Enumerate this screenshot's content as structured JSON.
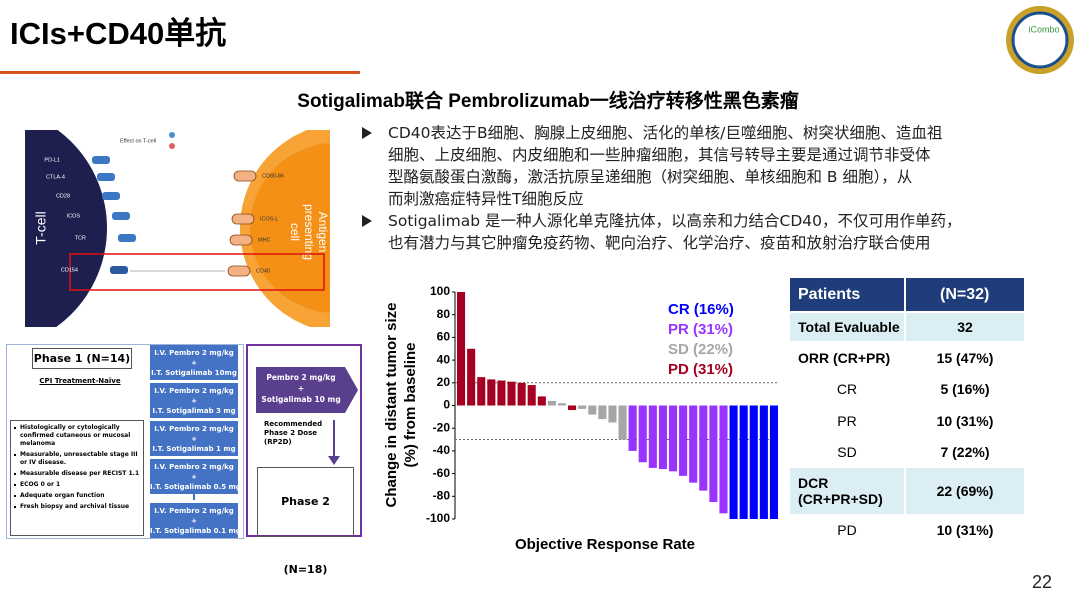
{
  "header": {
    "title": "ICIs+CD40单抗",
    "logo_text": "iCombo"
  },
  "subtitle": "Sotigalimab联合 Pembrolizumab一线治疗转移性黑色素瘤",
  "bullets": [
    [
      "CD40表达于B细胞、胸腺上皮细胞、活化的单核/巨噬细胞、树突状细胞、造血祖",
      "细胞、上皮细胞、内皮细胞和一些肿瘤细胞，其信号转导主要是通过调节非受体",
      "型酪氨酸蛋白激酶，激活抗原呈递细胞（树突细胞、单核细胞和 B 细胞），从",
      "而刺激癌症特异性T细胞反应"
    ],
    [
      "Sotigalimab 是一种人源化单克隆抗体，以高亲和力结合CD40，不仅可用作单药，",
      "也有潜力与其它肿瘤免疫药物、靶向治疗、化学治疗、疫苗和放射治疗联合使用"
    ]
  ],
  "mechanism_diagram": {
    "cell_left": "T-cell",
    "cell_right": [
      "Antigen",
      "presenting",
      "cell"
    ],
    "legend": "Effect on T-cell",
    "receptors": [
      "PD-L1",
      "CTLA-4",
      "CD28",
      "ICOS",
      "TCR",
      "CD154"
    ],
    "ligands": [
      "CD80-86",
      "ICOS-L",
      "MHC",
      "CD40"
    ]
  },
  "trial_design": {
    "phase1": "Phase 1 (N=14)",
    "population": "CPI Treatment-Naïve",
    "criteria": [
      "Histologically or cytologically confirmed cutaneous or mucosal melanoma",
      "Measurable, unresectable stage III or IV disease.",
      "Measurable disease per RECIST 1.1",
      "ECOG 0 or 1",
      "Adequate organ function",
      "Fresh biopsy and archival tissue"
    ],
    "doses": [
      [
        "I.V. Pembro 2 mg/kg",
        "+",
        "I.T. Sotigalimab 10mg"
      ],
      [
        "I.V. Pembro 2 mg/kg",
        "+",
        "I.T. Sotigalimab 3 mg"
      ],
      [
        "I.V. Pembro 2 mg/kg",
        "+",
        "I.T. Sotigalimab 1 mg"
      ],
      [
        "I.V. Pembro 2 mg/kg",
        "+",
        "I.T. Sotigalimab 0.5 mg"
      ],
      [
        "I.V. Pembro 2 mg/kg",
        "+",
        "I.T. Sotigalimab 0.1 mg"
      ]
    ],
    "rp2d_regimen": [
      "Pembro 2 mg/kg",
      "+",
      "Sotigalimab 10 mg"
    ],
    "rp2d_label": [
      "Recommended",
      "Phase 2 Dose",
      "(RP2D)"
    ],
    "phase2": "Phase 2 (N=18)"
  },
  "chart_data": {
    "type": "bar",
    "ylabel": [
      "Change in distant tumor size",
      "(%) from baseline"
    ],
    "xlabel": "Objective Response Rate",
    "ylim": [
      -100,
      100
    ],
    "yticks": [
      100,
      80,
      60,
      40,
      20,
      0,
      -20,
      -40,
      -60,
      -80,
      -100
    ],
    "reference_lines": [
      20,
      -30
    ],
    "series": [
      {
        "name": "CR (16%)",
        "color": "#0000ff",
        "values": [
          null,
          null,
          null,
          null,
          null,
          null,
          null,
          null,
          null,
          null,
          null,
          null,
          null,
          null,
          null,
          null,
          null,
          null,
          null,
          null,
          null,
          null,
          null,
          null,
          null,
          null,
          null,
          -100,
          -100,
          -100,
          -100,
          -100
        ]
      },
      {
        "name": "PR (31%)",
        "color": "#9933ff",
        "values": [
          null,
          null,
          null,
          null,
          null,
          null,
          null,
          null,
          null,
          null,
          null,
          null,
          null,
          null,
          null,
          null,
          null,
          -40,
          -50,
          -55,
          -56,
          -58,
          -62,
          -68,
          -75,
          -85,
          -95,
          null,
          null,
          null,
          null,
          null
        ]
      },
      {
        "name": "SD (22%)",
        "color": "#a6a6a6",
        "values": [
          null,
          null,
          null,
          null,
          null,
          null,
          null,
          null,
          null,
          4,
          2,
          null,
          -3,
          -8,
          -12,
          -15,
          -30,
          null,
          null,
          null,
          null,
          null,
          null,
          null,
          null,
          null,
          null,
          null,
          null,
          null,
          null,
          null
        ]
      },
      {
        "name": "PD (31%)",
        "color": "#a50021",
        "values": [
          100,
          50,
          25,
          23,
          22,
          21,
          20,
          18,
          8,
          null,
          null,
          -4,
          null,
          null,
          null,
          null,
          null,
          null,
          null,
          null,
          null,
          null,
          null,
          null,
          null,
          null,
          null,
          null,
          null,
          null,
          null,
          null
        ]
      }
    ]
  },
  "table": {
    "header": [
      "Patients",
      "(N=32)"
    ],
    "rows": [
      [
        "Total Evaluable",
        "32"
      ],
      [
        "ORR (CR+PR)",
        "15 (47%)"
      ],
      [
        "CR",
        "5 (16%)"
      ],
      [
        "PR",
        "10 (31%)"
      ],
      [
        "SD",
        "7 (22%)"
      ],
      [
        [
          "DCR",
          "(CR+PR+SD)"
        ],
        "22 (69%)"
      ],
      [
        "PD",
        "10 (31%)"
      ]
    ]
  },
  "page_number": "22"
}
